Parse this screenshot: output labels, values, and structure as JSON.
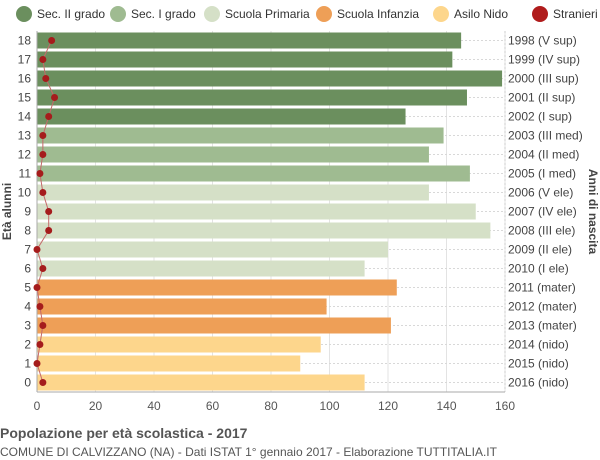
{
  "chart_data": {
    "type": "bar",
    "orientation": "horizontal",
    "title": "Popolazione per età scolastica - 2017",
    "subtitle": "COMUNE DI CALVIZZANO (NA) - Dati ISTAT 1° gennaio 2017 - Elaborazione TUTTITALIA.IT",
    "ylabel_left": "Età alunni",
    "ylabel_right": "Anni di nascita",
    "xlim": [
      0,
      160
    ],
    "x_ticks": [
      0,
      20,
      40,
      60,
      80,
      100,
      120,
      140,
      160
    ],
    "grid": true,
    "legend_position": "top",
    "legend": [
      {
        "label": "Sec. II grado",
        "color": "#6b8f5e",
        "kind": "bar"
      },
      {
        "label": "Sec. I grado",
        "color": "#9fbb91",
        "kind": "bar"
      },
      {
        "label": "Scuola Primaria",
        "color": "#d5e0c7",
        "kind": "bar"
      },
      {
        "label": "Scuola Infanzia",
        "color": "#ee9f57",
        "kind": "bar"
      },
      {
        "label": "Asilo Nido",
        "color": "#fdd68c",
        "kind": "bar"
      },
      {
        "label": "Stranieri",
        "color": "#b01c1c",
        "kind": "point"
      }
    ],
    "rows": [
      {
        "age": "18",
        "birth": "1998 (V sup)",
        "value": 145,
        "stranieri": 5,
        "group": "Sec. II grado"
      },
      {
        "age": "17",
        "birth": "1999 (IV sup)",
        "value": 142,
        "stranieri": 2,
        "group": "Sec. II grado"
      },
      {
        "age": "16",
        "birth": "2000 (III sup)",
        "value": 159,
        "stranieri": 3,
        "group": "Sec. II grado"
      },
      {
        "age": "15",
        "birth": "2001 (II sup)",
        "value": 147,
        "stranieri": 6,
        "group": "Sec. II grado"
      },
      {
        "age": "14",
        "birth": "2002 (I sup)",
        "value": 126,
        "stranieri": 4,
        "group": "Sec. II grado"
      },
      {
        "age": "13",
        "birth": "2003 (III med)",
        "value": 139,
        "stranieri": 2,
        "group": "Sec. I grado"
      },
      {
        "age": "12",
        "birth": "2004 (II med)",
        "value": 134,
        "stranieri": 2,
        "group": "Sec. I grado"
      },
      {
        "age": "11",
        "birth": "2005 (I med)",
        "value": 148,
        "stranieri": 1,
        "group": "Sec. I grado"
      },
      {
        "age": "10",
        "birth": "2006 (V ele)",
        "value": 134,
        "stranieri": 2,
        "group": "Scuola Primaria"
      },
      {
        "age": "9",
        "birth": "2007 (IV ele)",
        "value": 150,
        "stranieri": 4,
        "group": "Scuola Primaria"
      },
      {
        "age": "8",
        "birth": "2008 (III ele)",
        "value": 155,
        "stranieri": 4,
        "group": "Scuola Primaria"
      },
      {
        "age": "7",
        "birth": "2009 (II ele)",
        "value": 120,
        "stranieri": 0,
        "group": "Scuola Primaria"
      },
      {
        "age": "6",
        "birth": "2010 (I ele)",
        "value": 112,
        "stranieri": 2,
        "group": "Scuola Primaria"
      },
      {
        "age": "5",
        "birth": "2011 (mater)",
        "value": 123,
        "stranieri": 0,
        "group": "Scuola Infanzia"
      },
      {
        "age": "4",
        "birth": "2012 (mater)",
        "value": 99,
        "stranieri": 1,
        "group": "Scuola Infanzia"
      },
      {
        "age": "3",
        "birth": "2013 (mater)",
        "value": 121,
        "stranieri": 2,
        "group": "Scuola Infanzia"
      },
      {
        "age": "2",
        "birth": "2014 (nido)",
        "value": 97,
        "stranieri": 1,
        "group": "Asilo Nido"
      },
      {
        "age": "1",
        "birth": "2015 (nido)",
        "value": 90,
        "stranieri": 0,
        "group": "Asilo Nido"
      },
      {
        "age": "0",
        "birth": "2016 (nido)",
        "value": 112,
        "stranieri": 2,
        "group": "Asilo Nido"
      }
    ]
  }
}
